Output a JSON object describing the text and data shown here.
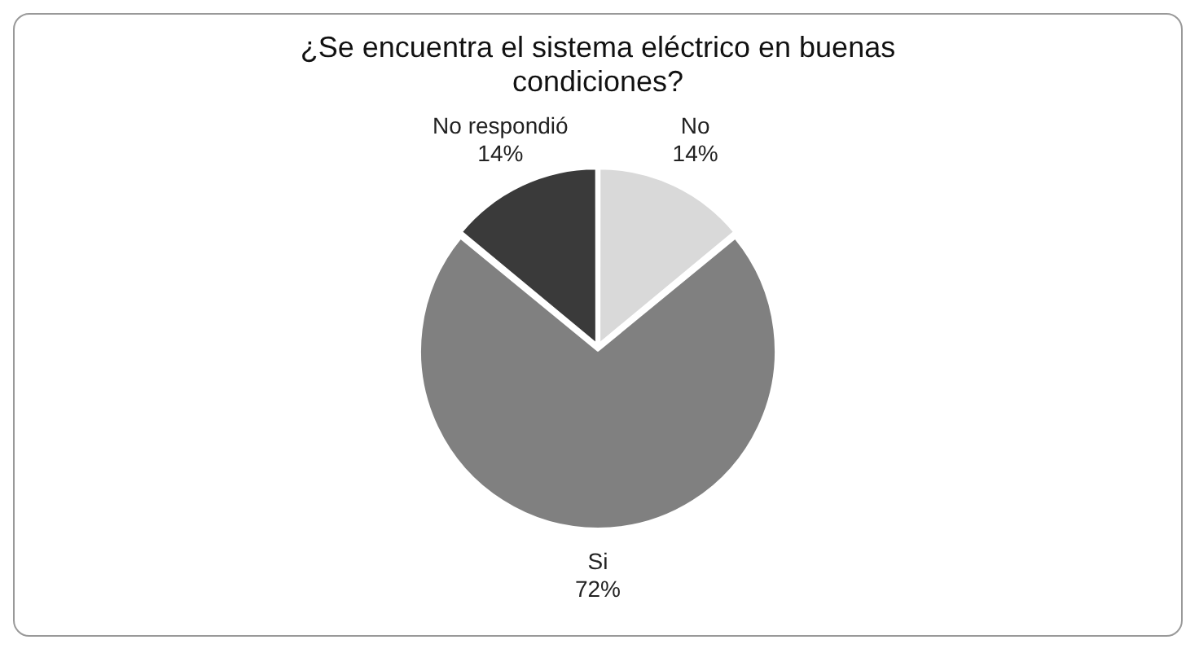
{
  "chart_data": {
    "type": "pie",
    "title": "¿Se encuentra el sistema eléctrico en buenas condiciones?",
    "categories": [
      "No",
      "Si",
      "No respondió"
    ],
    "values": [
      14,
      72,
      14
    ],
    "colors": [
      "#d9d9d9",
      "#808080",
      "#3a3a3a"
    ],
    "value_labels": [
      "14%",
      "72%",
      "14%"
    ],
    "legend": false
  }
}
